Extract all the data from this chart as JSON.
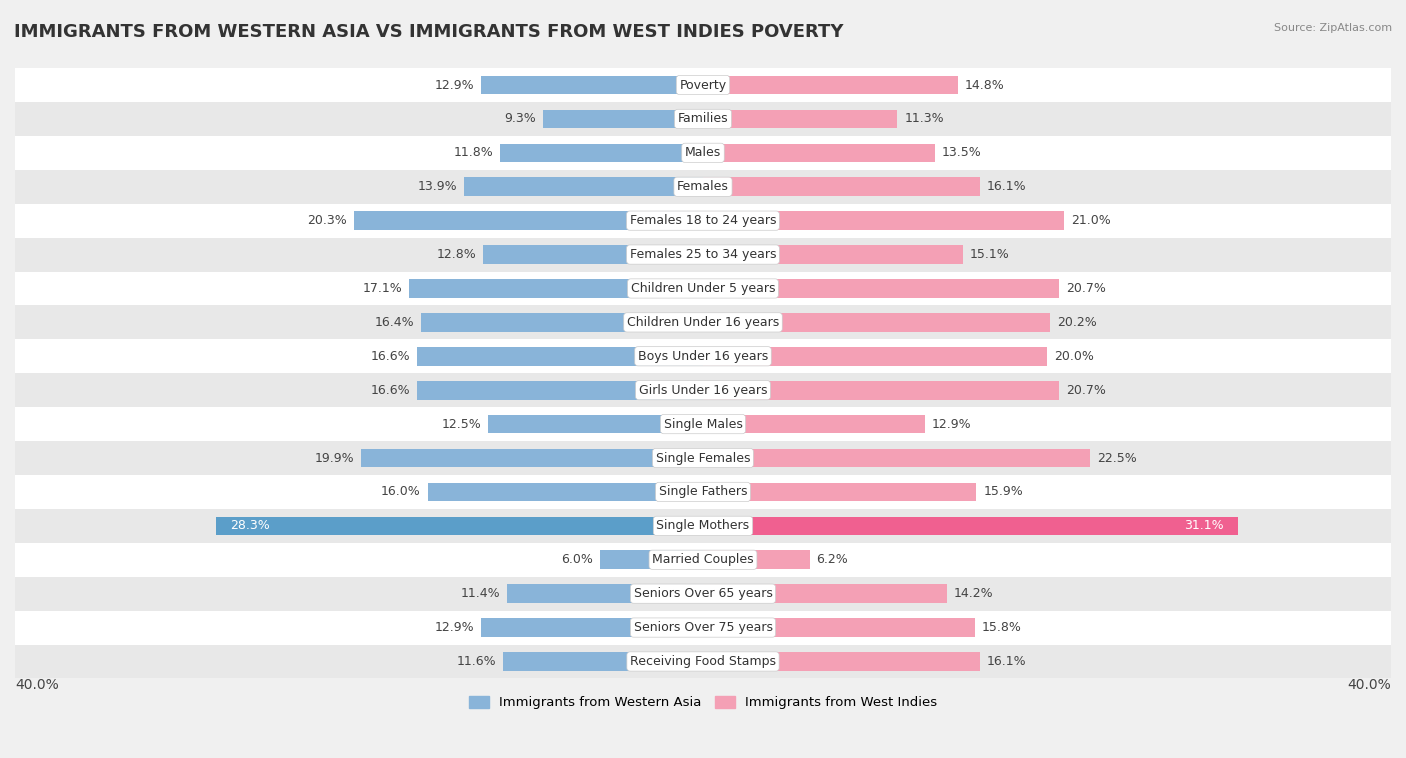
{
  "title": "IMMIGRANTS FROM WESTERN ASIA VS IMMIGRANTS FROM WEST INDIES POVERTY",
  "source": "Source: ZipAtlas.com",
  "categories": [
    "Poverty",
    "Families",
    "Males",
    "Females",
    "Females 18 to 24 years",
    "Females 25 to 34 years",
    "Children Under 5 years",
    "Children Under 16 years",
    "Boys Under 16 years",
    "Girls Under 16 years",
    "Single Males",
    "Single Females",
    "Single Fathers",
    "Single Mothers",
    "Married Couples",
    "Seniors Over 65 years",
    "Seniors Over 75 years",
    "Receiving Food Stamps"
  ],
  "western_asia": [
    12.9,
    9.3,
    11.8,
    13.9,
    20.3,
    12.8,
    17.1,
    16.4,
    16.6,
    16.6,
    12.5,
    19.9,
    16.0,
    28.3,
    6.0,
    11.4,
    12.9,
    11.6
  ],
  "west_indies": [
    14.8,
    11.3,
    13.5,
    16.1,
    21.0,
    15.1,
    20.7,
    20.2,
    20.0,
    20.7,
    12.9,
    22.5,
    15.9,
    31.1,
    6.2,
    14.2,
    15.8,
    16.1
  ],
  "color_western_asia": "#89b4d9",
  "color_west_indies": "#f4a0b5",
  "color_single_mothers_asia": "#5b9ec9",
  "color_single_mothers_wi": "#f06090",
  "axis_max": 40.0,
  "background_color": "#f0f0f0",
  "row_bg_light": "#ffffff",
  "row_bg_dark": "#e8e8e8",
  "label_fontsize": 9,
  "title_fontsize": 13,
  "legend_label_asia": "Immigrants from Western Asia",
  "legend_label_wi": "Immigrants from West Indies"
}
